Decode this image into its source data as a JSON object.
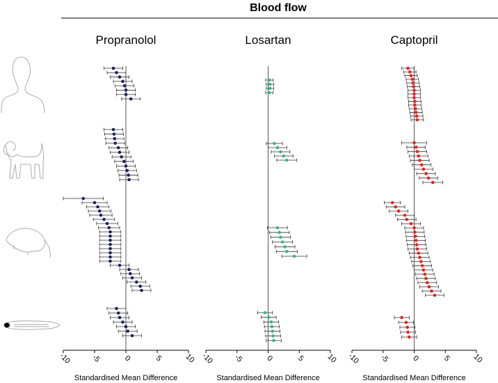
{
  "title": "Blood flow",
  "chart_data": [
    {
      "type": "forest",
      "title": "Propranolol",
      "xlabel": "Standardised Mean Difference",
      "xlim": [
        -10,
        10
      ],
      "xticks": [
        -10,
        -5,
        0,
        5,
        10
      ],
      "color": "#1c2260",
      "groups": [
        {
          "values": [
            -2,
            -1.5,
            -1,
            -0.5,
            -0.2,
            0,
            0,
            0.8
          ],
          "errors": [
            1.5,
            1.5,
            1.5,
            1.5,
            1.5,
            1.5,
            1.5,
            1.5
          ]
        },
        {
          "values": [
            -2,
            -1.9,
            -1.8,
            -1.7,
            -1.2,
            -1,
            -0.7,
            -0.3,
            0,
            0.2,
            0.4,
            0.5
          ],
          "errors": [
            1.5,
            1.5,
            1.5,
            1.5,
            1.5,
            1.5,
            1.5,
            1.5,
            1.5,
            1.5,
            1.5,
            1.5
          ]
        },
        {
          "values": [
            -6.8,
            -5,
            -4.5,
            -4.2,
            -4,
            -3.5,
            -3,
            -2.7,
            -2.5,
            -2.5,
            -2.5,
            -2.5,
            -2.5,
            -2.5,
            -2.5,
            -2.5,
            -1,
            0.5,
            0.7,
            1,
            1.7,
            2.3,
            2.5
          ],
          "errors": [
            3.2,
            2,
            1.8,
            1.8,
            1.8,
            1.7,
            1.7,
            1.7,
            1.7,
            1.7,
            1.7,
            1.7,
            1.7,
            1.7,
            1.7,
            1.7,
            1.5,
            1.5,
            1.5,
            1.5,
            1.5,
            1.5,
            1.5
          ]
        },
        {
          "values": [
            -1.5,
            -1.2,
            -1,
            -0.5,
            0,
            0.3,
            1
          ],
          "errors": [
            1.5,
            1.5,
            1.5,
            1.5,
            1.5,
            1.5,
            1.5
          ]
        }
      ]
    },
    {
      "type": "forest",
      "title": "Losartan",
      "xlabel": "Standardised Mean Difference",
      "xlim": [
        -10,
        10
      ],
      "xticks": [
        -10,
        -5,
        0,
        5,
        10
      ],
      "color": "#3cb38a",
      "groups": [
        {
          "values": [
            0.2,
            0.3,
            0.3,
            0.2
          ],
          "errors": [
            0.6,
            0.6,
            0.6,
            0.6
          ]
        },
        {
          "values": [
            1,
            1.5,
            2,
            2.5,
            3
          ],
          "errors": [
            1.3,
            1.5,
            1.5,
            1.5,
            1.6
          ]
        },
        {
          "values": [
            1.5,
            1.8,
            2,
            2.3,
            2.7,
            3,
            4.2
          ],
          "errors": [
            1.6,
            1.6,
            1.6,
            1.6,
            1.6,
            1.7,
            2
          ]
        },
        {
          "values": [
            -0.5,
            0.1,
            0.5,
            0.6,
            0.7,
            0.8,
            0.9
          ],
          "errors": [
            1.2,
            1.2,
            1.2,
            1.2,
            1.2,
            1.2,
            1.2
          ]
        }
      ]
    },
    {
      "type": "forest",
      "title": "Captopril",
      "xlabel": "Standardised Mean Difference",
      "xlim": [
        -10,
        10
      ],
      "xticks": [
        -10,
        -5,
        0,
        5,
        10
      ],
      "color": "#e8221f",
      "groups": [
        {
          "values": [
            -1,
            -0.7,
            -0.5,
            -0.3,
            -0.2,
            -0.1,
            0,
            0,
            0,
            0.1,
            0.1,
            0.2,
            0.3,
            0.4,
            0.5
          ],
          "errors": [
            1,
            1,
            1,
            1,
            1,
            1,
            1,
            1,
            1,
            1,
            1,
            1,
            1,
            1,
            1
          ]
        },
        {
          "values": [
            0,
            0.3,
            0.5,
            0.7,
            0.9,
            1.2,
            1.5,
            1.9,
            2.3,
            3
          ],
          "errors": [
            2,
            1.5,
            1.5,
            1.5,
            1.5,
            1.5,
            1.5,
            1.5,
            1.5,
            1.6
          ]
        },
        {
          "values": [
            -3.5,
            -3,
            -2.5,
            -1.5,
            -1.2,
            -0.5,
            0,
            0.1,
            0.2,
            0.3,
            0.4,
            0.5,
            0.7,
            0.9,
            1.1,
            1.3,
            1.5,
            1.7,
            1.9,
            2.1,
            2.4,
            2.8,
            3.3
          ],
          "errors": [
            1.3,
            1.5,
            1.5,
            1.5,
            1.5,
            1.5,
            1.5,
            1.5,
            1.5,
            1.5,
            1.5,
            1.5,
            1.5,
            1.5,
            1.5,
            1.5,
            1.5,
            1.5,
            1.5,
            1.5,
            1.5,
            1.5,
            1.5
          ]
        },
        {
          "values": [
            -2,
            -1.3,
            -1.1,
            -1,
            -0.8
          ],
          "errors": [
            1.2,
            1.2,
            1.2,
            1.2,
            1.2
          ]
        }
      ]
    }
  ]
}
